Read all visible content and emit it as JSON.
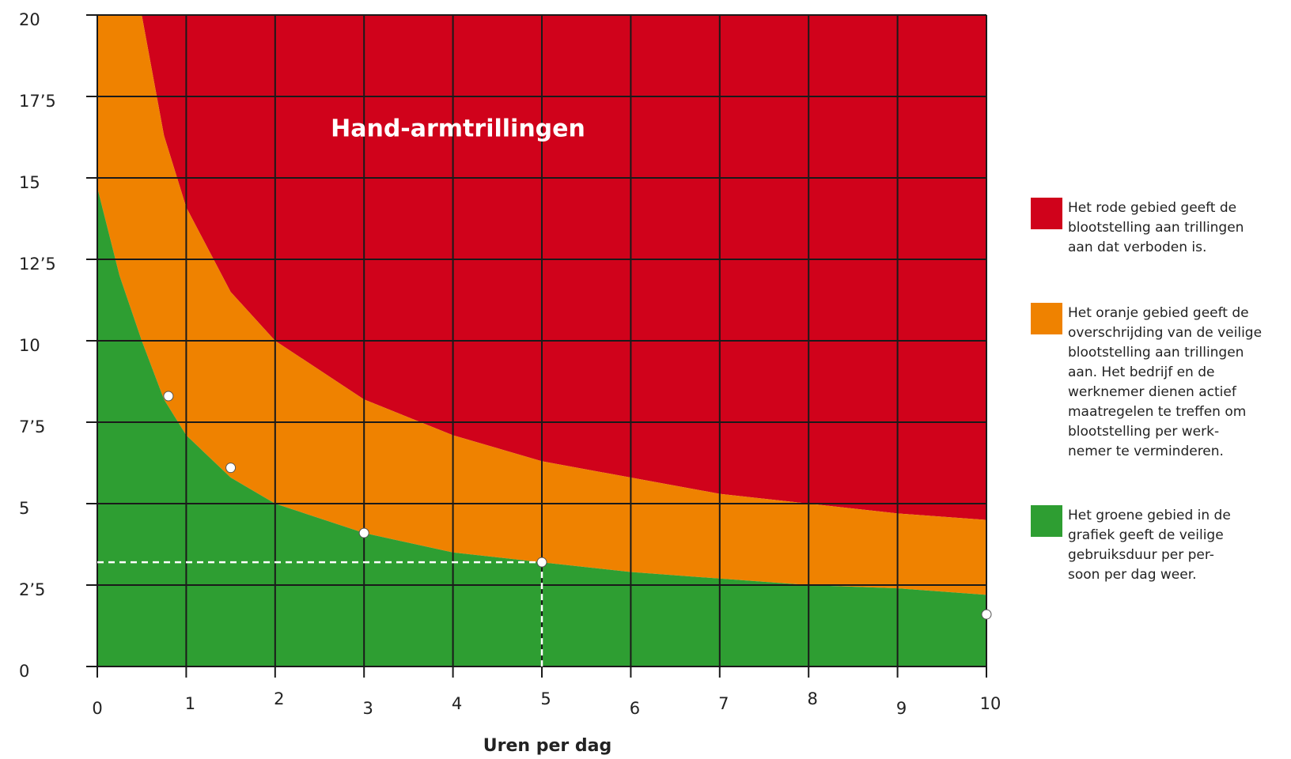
{
  "chart_data": {
    "type": "area",
    "title": "Hand-armtrillingen",
    "x_label": "Uren per dag",
    "x": [
      0,
      0.25,
      0.5,
      0.75,
      1,
      1.5,
      2,
      3,
      4,
      5,
      6,
      7,
      8,
      9,
      10
    ],
    "series": [
      {
        "color": "#2e9e32",
        "values": [
          14.7,
          12,
          10,
          8.2,
          7.1,
          5.8,
          5,
          4.1,
          3.5,
          3.2,
          2.9,
          2.7,
          2.5,
          2.4,
          2.2
        ]
      },
      {
        "color": "#ef8200",
        "values": [
          20,
          20,
          20,
          16.3,
          14.1,
          11.5,
          10,
          8.2,
          7.1,
          6.3,
          5.8,
          5.3,
          5,
          4.7,
          4.5
        ]
      }
    ],
    "above_color": "#d0021b",
    "points": {
      "x": [
        0.8,
        1.5,
        3,
        5,
        10
      ],
      "values": [
        8.3,
        6.1,
        4.1,
        3.2,
        1.6
      ]
    },
    "xlim": [
      0,
      10
    ],
    "xticks": [
      0,
      1,
      2,
      3,
      4,
      5,
      6,
      7,
      8,
      9,
      10
    ],
    "ylim": [
      0,
      20
    ],
    "yticks": [
      0,
      {
        "value": 2.5,
        "label": "2’5"
      },
      5,
      {
        "value": 7.5,
        "label": "7’5"
      },
      10,
      {
        "value": 12.5,
        "label": "12’5"
      },
      15,
      {
        "value": 17.5,
        "label": "17’5"
      },
      20
    ],
    "grid": true,
    "legend": [
      {
        "lines": [
          "Het rode gebied geeft de",
          "blootstelling aan trillingen",
          "aan dat verboden is."
        ]
      },
      {
        "lines": [
          "Het oranje gebied geeft de",
          "overschrijding van de veilige",
          "blootstelling aan trillingen",
          "aan. Het bedrijf en de",
          "werknemer dienen actief",
          "maatregelen te treffen om",
          "blootstelling per werk-",
          "nemer te verminderen."
        ]
      },
      {
        "lines": [
          "Het groene gebied in de",
          "grafiek geeft de veilige",
          "gebruiksduur per per-",
          "soon per dag weer."
        ]
      }
    ]
  }
}
